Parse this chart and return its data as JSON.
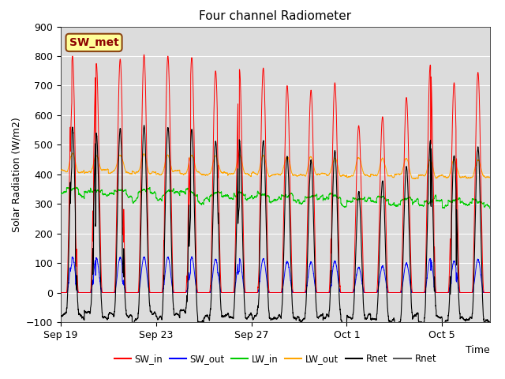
{
  "title": "Four channel Radiometer",
  "xlabel": "Time",
  "ylabel": "Solar Radiation (W/m2)",
  "ylim": [
    -100,
    900
  ],
  "yticks": [
    -100,
    0,
    100,
    200,
    300,
    400,
    500,
    600,
    700,
    800,
    900
  ],
  "annotation_label": "SW_met",
  "annotation_color": "#8B0000",
  "annotation_bg": "#FFFF99",
  "annotation_border": "#8B4513",
  "background_color": "#DCDCDC",
  "series": [
    {
      "label": "SW_in",
      "color": "#FF0000"
    },
    {
      "label": "SW_out",
      "color": "#0000FF"
    },
    {
      "label": "LW_in",
      "color": "#00CC00"
    },
    {
      "label": "LW_out",
      "color": "#FFA500"
    },
    {
      "label": "Rnet",
      "color": "#000000"
    },
    {
      "label": "Rnet",
      "color": "#555555"
    }
  ],
  "n_days": 18,
  "xtick_labels": [
    "Sep 19",
    "Sep 23",
    "Sep 27",
    "Oct 1",
    "Oct 5"
  ],
  "xtick_positions": [
    0,
    4,
    8,
    12,
    16
  ]
}
